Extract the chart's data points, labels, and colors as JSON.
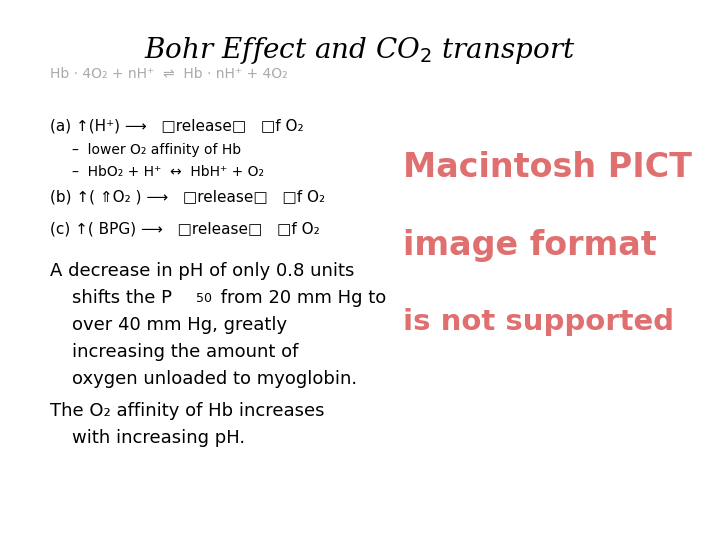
{
  "title": "Bohr Effect and CO$_2$ transport",
  "background_color": "#ffffff",
  "title_fontsize": 20,
  "body_color": "#000000",
  "equation_color": "#aaaaaa",
  "pict_color": "#e07070",
  "fig_width": 7.2,
  "fig_height": 5.4,
  "dpi": 100
}
